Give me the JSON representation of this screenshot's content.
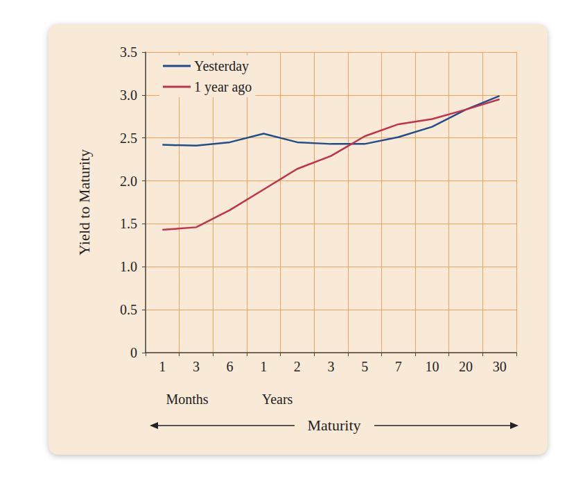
{
  "chart_data": {
    "type": "line",
    "categories": [
      "1",
      "3",
      "6",
      "1",
      "2",
      "3",
      "5",
      "7",
      "10",
      "20",
      "30"
    ],
    "x_label": "Maturity",
    "y_label": "Yield to Maturity",
    "annotations": [
      "Months",
      "Years"
    ],
    "series": [
      {
        "name": "Yesterday",
        "color": "#1f4e8c",
        "values": [
          2.42,
          2.41,
          2.45,
          2.55,
          2.45,
          2.43,
          2.43,
          2.51,
          2.63,
          2.83,
          2.99
        ]
      },
      {
        "name": "1 year ago",
        "color": "#c4314b",
        "values": [
          1.43,
          1.46,
          1.66,
          1.9,
          2.14,
          2.29,
          2.52,
          2.66,
          2.72,
          2.83,
          2.95
        ]
      }
    ],
    "ylim": [
      0,
      3.5
    ],
    "yticks": [
      0,
      0.5,
      {
        "value": 1,
        "label": "1.0"
      },
      1.5,
      {
        "value": 2,
        "label": "2.0"
      },
      2.5,
      {
        "value": 3,
        "label": "3.0"
      },
      3.5
    ],
    "grid": true,
    "legend": "upper left"
  }
}
